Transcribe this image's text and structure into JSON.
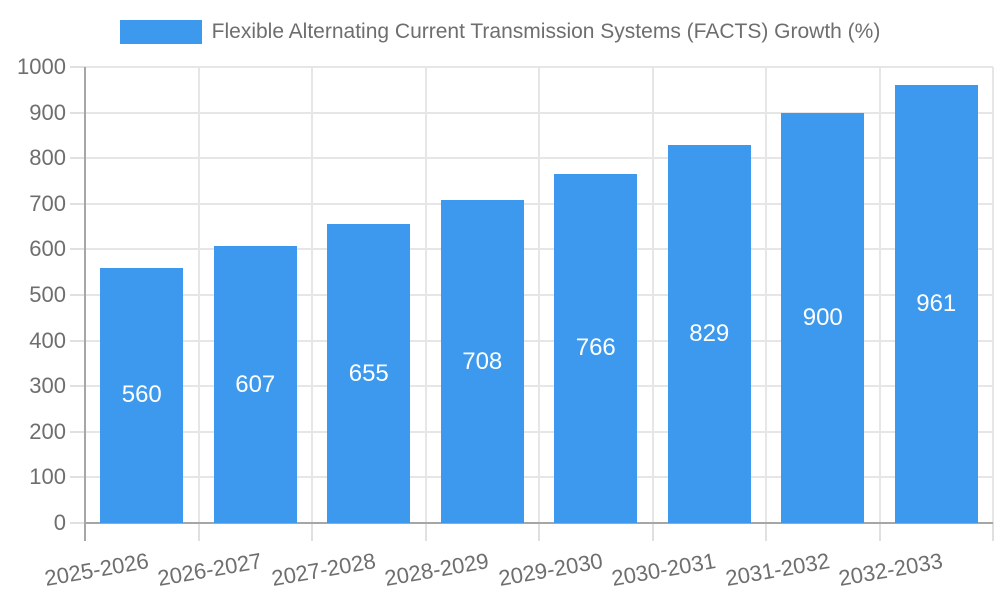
{
  "chart_data": {
    "type": "bar",
    "title": "Flexible Alternating Current Transmission Systems (FACTS) Growth (%)",
    "legend": {
      "position": "top",
      "items": [
        {
          "label": "Flexible Alternating Current Transmission Systems (FACTS) Growth (%)",
          "swatch_color": "#3C99ED"
        }
      ]
    },
    "categories": [
      "2025-2026",
      "2026-2027",
      "2027-2028",
      "2028-2029",
      "2029-2030",
      "2030-2031",
      "2031-2032",
      "2032-2033"
    ],
    "series": [
      {
        "name": "Flexible Alternating Current Transmission Systems (FACTS) Growth (%)",
        "values": [
          560,
          607,
          655,
          708,
          766,
          829,
          900,
          961
        ]
      }
    ],
    "value_labels_shown": true,
    "xlabel": "",
    "ylabel": "",
    "ylim": [
      0,
      1000
    ],
    "ytick_step": 100,
    "yticks": [
      0,
      100,
      200,
      300,
      400,
      500,
      600,
      700,
      800,
      900,
      1000
    ],
    "grid": true,
    "colors": {
      "bar": "#3C99ED",
      "grid": "#E6E6E6",
      "tick": "#E0E0E0",
      "axis": "#A6A6A6",
      "text": "#6E6E6E",
      "value_label": "#FFFFFF",
      "background": "#FFFFFF"
    }
  }
}
